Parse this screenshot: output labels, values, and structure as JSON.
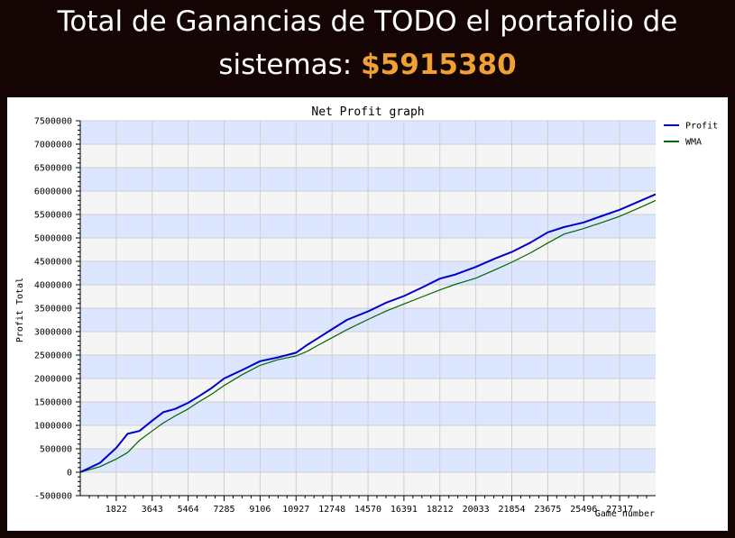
{
  "header": {
    "line1": "Total de Ganancias de TODO el portafolio de",
    "line2_prefix": "sistemas: ",
    "amount": "$5915380"
  },
  "chart_data": {
    "type": "line",
    "title": "Net Profit graph",
    "xlabel": "Game number",
    "ylabel": "Profit Total",
    "xlim": [
      0,
      29138
    ],
    "ylim": [
      -500000,
      7500000
    ],
    "x_ticks": [
      1822,
      3643,
      5464,
      7285,
      9106,
      10927,
      12748,
      14570,
      16391,
      18212,
      20033,
      21854,
      23675,
      25496,
      27317
    ],
    "y_ticks": [
      -500000,
      0,
      500000,
      1000000,
      1500000,
      2000000,
      2500000,
      3000000,
      3500000,
      4000000,
      4500000,
      5000000,
      5500000,
      6000000,
      6500000,
      7000000,
      7500000
    ],
    "legend_position": "right",
    "grid": true,
    "series": [
      {
        "name": "Profit",
        "color": "#0000cc",
        "x": [
          0,
          1000,
          1822,
          2400,
          3000,
          3643,
          4200,
          4800,
          5464,
          6000,
          6600,
          7285,
          8200,
          9106,
          10000,
          10927,
          11500,
          12000,
          12748,
          13500,
          14570,
          15500,
          16391,
          17300,
          18212,
          19000,
          20033,
          21000,
          21854,
          22800,
          23675,
          24500,
          25496,
          26500,
          27317,
          28300,
          29138
        ],
        "y": [
          0,
          200000,
          520000,
          820000,
          880000,
          1100000,
          1280000,
          1350000,
          1480000,
          1620000,
          1780000,
          2000000,
          2180000,
          2370000,
          2450000,
          2550000,
          2720000,
          2850000,
          3050000,
          3250000,
          3430000,
          3620000,
          3760000,
          3940000,
          4130000,
          4220000,
          4380000,
          4560000,
          4700000,
          4900000,
          5120000,
          5230000,
          5330000,
          5480000,
          5600000,
          5780000,
          5930000
        ]
      },
      {
        "name": "WMA",
        "color": "#006600",
        "x": [
          0,
          1000,
          1822,
          2400,
          3000,
          3643,
          4200,
          4800,
          5464,
          6000,
          6600,
          7285,
          8200,
          9106,
          10000,
          10927,
          11500,
          12000,
          12748,
          13500,
          14570,
          15500,
          16391,
          17300,
          18212,
          19000,
          20033,
          21000,
          21854,
          22800,
          23675,
          24500,
          25496,
          26500,
          27317,
          28300,
          29138
        ],
        "y": [
          0,
          120000,
          280000,
          420000,
          680000,
          880000,
          1050000,
          1200000,
          1350000,
          1500000,
          1650000,
          1850000,
          2080000,
          2280000,
          2400000,
          2480000,
          2580000,
          2700000,
          2870000,
          3040000,
          3260000,
          3440000,
          3590000,
          3740000,
          3890000,
          4010000,
          4140000,
          4320000,
          4480000,
          4680000,
          4890000,
          5080000,
          5200000,
          5340000,
          5460000,
          5640000,
          5800000
        ]
      }
    ]
  }
}
